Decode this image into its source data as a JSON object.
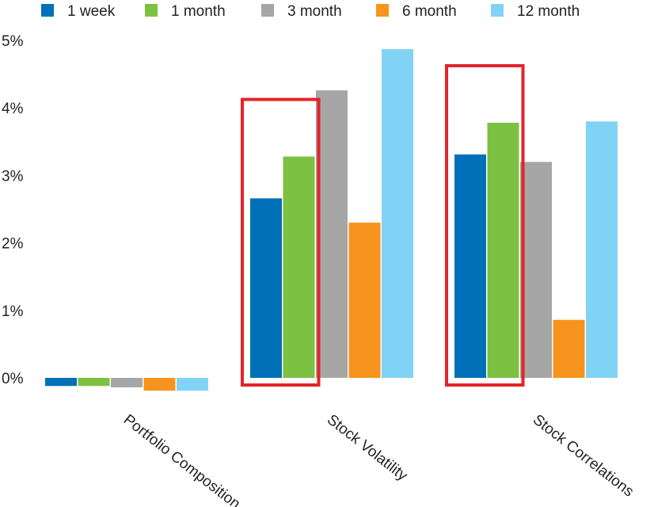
{
  "chart_data": {
    "type": "bar",
    "categories": [
      "Portfolio Composition",
      "Stock Volatility",
      "Stock Correlations"
    ],
    "series": [
      {
        "name": "1 week",
        "color": "#0070B8",
        "values": [
          -0.12,
          2.66,
          3.31
        ]
      },
      {
        "name": "1 month",
        "color": "#7DC142",
        "values": [
          -0.12,
          3.28,
          3.78
        ]
      },
      {
        "name": "3 month",
        "color": "#A6A6A6",
        "values": [
          -0.14,
          4.26,
          3.2
        ]
      },
      {
        "name": "6 month",
        "color": "#F7941D",
        "values": [
          -0.19,
          2.3,
          0.86
        ]
      },
      {
        "name": "12 month",
        "color": "#81D3F5",
        "values": [
          -0.19,
          4.87,
          3.8
        ]
      }
    ],
    "y_ticks": [
      "0%",
      "1%",
      "2%",
      "3%",
      "4%",
      "5%"
    ],
    "ylim": [
      0,
      5
    ],
    "legend_position": "top",
    "grid": false,
    "highlight_boxes": [
      {
        "category": "Stock Volatility",
        "series": [
          "1 week",
          "1 month"
        ],
        "color": "#E3232A"
      },
      {
        "category": "Stock Correlations",
        "series": [
          "1 week",
          "1 month"
        ],
        "color": "#E3232A"
      }
    ]
  }
}
